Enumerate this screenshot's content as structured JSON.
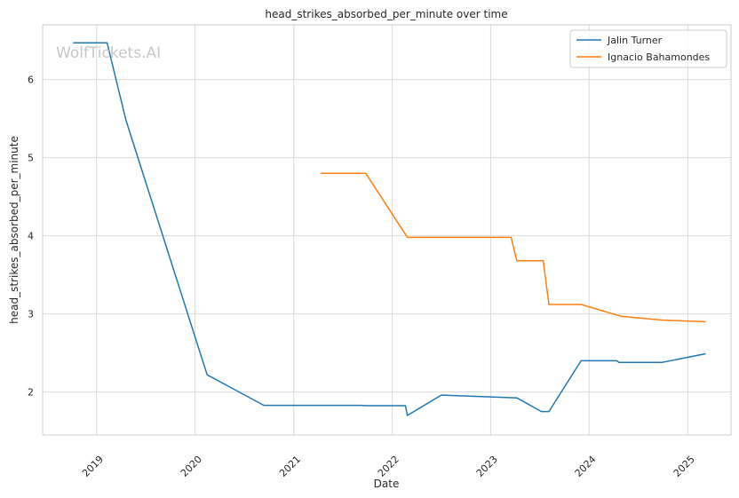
{
  "chart_data": {
    "type": "line",
    "title": "head_strikes_absorbed_per_minute over time",
    "xlabel": "Date",
    "ylabel": "head_strikes_absorbed_per_minute",
    "watermark": "WolfTickets.AI",
    "x_tick_labels": [
      "2019",
      "2020",
      "2021",
      "2022",
      "2023",
      "2024",
      "2025"
    ],
    "y_tick_labels": [
      "2",
      "3",
      "4",
      "5",
      "6"
    ],
    "xlim": [
      "2018-06-15",
      "2025-06-10"
    ],
    "ylim": [
      1.45,
      6.7
    ],
    "grid": true,
    "legend_position": "top-right",
    "series": [
      {
        "name": "Jalin Turner",
        "color": "#1f77b4",
        "points": [
          [
            "2018-10-06",
            6.47
          ],
          [
            "2019-02-09",
            6.47
          ],
          [
            "2019-04-20",
            5.48
          ],
          [
            "2020-02-15",
            2.22
          ],
          [
            "2020-09-12",
            1.83
          ],
          [
            "2021-09-04",
            1.83
          ],
          [
            "2021-10-01",
            1.825
          ],
          [
            "2022-02-19",
            1.825
          ],
          [
            "2022-02-26",
            1.7
          ],
          [
            "2022-07-02",
            1.96
          ],
          [
            "2023-02-25",
            1.93
          ],
          [
            "2023-04-08",
            1.925
          ],
          [
            "2023-07-08",
            1.75
          ],
          [
            "2023-08-05",
            1.75
          ],
          [
            "2023-12-02",
            2.4
          ],
          [
            "2024-04-13",
            2.4
          ],
          [
            "2024-04-20",
            2.38
          ],
          [
            "2024-09-28",
            2.38
          ],
          [
            "2025-03-08",
            2.49
          ]
        ]
      },
      {
        "name": "Ignacio Bahamondes",
        "color": "#ff7f0e",
        "points": [
          [
            "2021-04-10",
            4.8
          ],
          [
            "2021-09-25",
            4.8
          ],
          [
            "2022-02-26",
            3.98
          ],
          [
            "2023-03-18",
            3.98
          ],
          [
            "2023-04-08",
            3.68
          ],
          [
            "2023-07-15",
            3.68
          ],
          [
            "2023-08-05",
            3.12
          ],
          [
            "2023-12-02",
            3.12
          ],
          [
            "2024-04-27",
            2.97
          ],
          [
            "2024-09-28",
            2.92
          ],
          [
            "2025-03-08",
            2.9
          ]
        ]
      }
    ]
  }
}
